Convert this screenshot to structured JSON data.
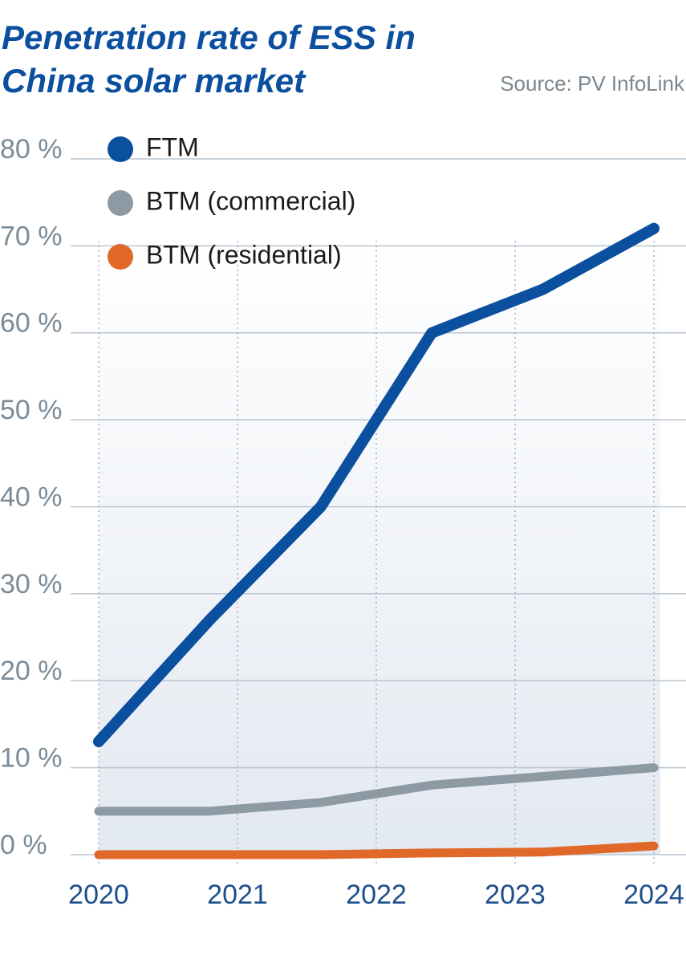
{
  "chart_data": {
    "type": "line",
    "title": [
      "Penetration rate of ESS in",
      "China solar market"
    ],
    "source": "Source: PV InfoLink",
    "x": [
      2020,
      2020.8,
      2021.6,
      2022.4,
      2023.2,
      2024
    ],
    "series": [
      {
        "name": "FTM",
        "color": "#0b4f9f",
        "values": [
          13,
          27,
          40,
          60,
          65,
          72
        ]
      },
      {
        "name": "BTM (commercial)",
        "color": "#8d9aa3",
        "values": [
          5,
          5,
          6,
          8,
          9,
          10
        ]
      },
      {
        "name": "BTM (residential)",
        "color": "#e0692a",
        "values": [
          0,
          0,
          0,
          0.2,
          0.3,
          1
        ]
      }
    ],
    "xlim": [
      2020,
      2024
    ],
    "xticks": [
      2020,
      2021,
      2022,
      2023,
      2024
    ],
    "ylim": [
      0,
      80
    ],
    "yticks": [
      {
        "value": 0,
        "label": "0 %"
      },
      {
        "value": 10,
        "label": "10 %"
      },
      {
        "value": 20,
        "label": "20 %"
      },
      {
        "value": 30,
        "label": "30 %"
      },
      {
        "value": 40,
        "label": "40 %"
      },
      {
        "value": 50,
        "label": "50 %"
      },
      {
        "value": 60,
        "label": "60 %"
      },
      {
        "value": 70,
        "label": "70 %"
      },
      {
        "value": 80,
        "label": "80 %"
      }
    ],
    "grid": true,
    "legend": "upper left"
  }
}
